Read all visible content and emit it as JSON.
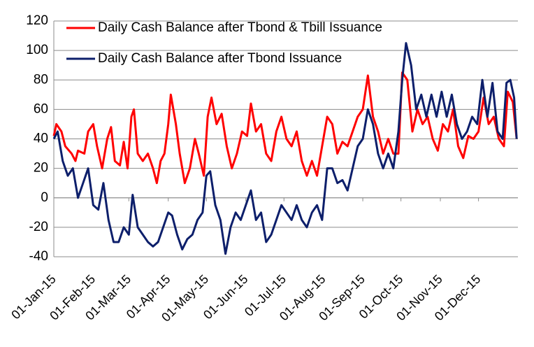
{
  "chart_data": {
    "type": "line",
    "series": [
      {
        "name": "Daily Cash Balance after Tbond & Tbill Issuance",
        "color": "#ff0000",
        "x": [
          "2015-01-01",
          "2015-01-03",
          "2015-01-07",
          "2015-01-10",
          "2015-01-15",
          "2015-01-18",
          "2015-01-20",
          "2015-01-25",
          "2015-01-28",
          "2015-02-01",
          "2015-02-04",
          "2015-02-08",
          "2015-02-12",
          "2015-02-15",
          "2015-02-18",
          "2015-02-22",
          "2015-02-25",
          "2015-02-28",
          "2015-03-03",
          "2015-03-05",
          "2015-03-08",
          "2015-03-12",
          "2015-03-16",
          "2015-03-20",
          "2015-03-23",
          "2015-03-26",
          "2015-03-29",
          "2015-04-01",
          "2015-04-03",
          "2015-04-07",
          "2015-04-10",
          "2015-04-14",
          "2015-04-18",
          "2015-04-22",
          "2015-04-25",
          "2015-04-29",
          "2015-05-02",
          "2015-05-05",
          "2015-05-09",
          "2015-05-13",
          "2015-05-17",
          "2015-05-21",
          "2015-05-25",
          "2015-05-29",
          "2015-06-02",
          "2015-06-05",
          "2015-06-09",
          "2015-06-13",
          "2015-06-17",
          "2015-06-21",
          "2015-06-25",
          "2015-06-29",
          "2015-07-03",
          "2015-07-07",
          "2015-07-11",
          "2015-07-15",
          "2015-07-19",
          "2015-07-23",
          "2015-07-27",
          "2015-07-31",
          "2015-08-04",
          "2015-08-08",
          "2015-08-12",
          "2015-08-16",
          "2015-08-20",
          "2015-08-24",
          "2015-08-28",
          "2015-09-01",
          "2015-09-05",
          "2015-09-09",
          "2015-09-13",
          "2015-09-17",
          "2015-09-21",
          "2015-09-25",
          "2015-09-29",
          "2015-10-02",
          "2015-10-06",
          "2015-10-10",
          "2015-10-14",
          "2015-10-18",
          "2015-10-22",
          "2015-10-26",
          "2015-10-30",
          "2015-11-03",
          "2015-11-07",
          "2015-11-11",
          "2015-11-15",
          "2015-11-19",
          "2015-11-23",
          "2015-11-27",
          "2015-12-01",
          "2015-12-05",
          "2015-12-09",
          "2015-12-13",
          "2015-12-17",
          "2015-12-21",
          "2015-12-24",
          "2015-12-28",
          "2015-12-31"
        ],
        "values": [
          42,
          50,
          45,
          35,
          30,
          25,
          32,
          30,
          45,
          50,
          35,
          20,
          40,
          48,
          25,
          22,
          38,
          20,
          55,
          60,
          30,
          25,
          30,
          20,
          10,
          25,
          30,
          50,
          70,
          50,
          30,
          10,
          20,
          40,
          30,
          15,
          55,
          68,
          50,
          57,
          35,
          20,
          30,
          45,
          42,
          64,
          45,
          50,
          30,
          25,
          45,
          55,
          40,
          35,
          45,
          25,
          15,
          25,
          15,
          35,
          55,
          50,
          30,
          38,
          35,
          45,
          55,
          60,
          83,
          55,
          45,
          30,
          40,
          30,
          30,
          85,
          80,
          45,
          60,
          50,
          55,
          40,
          32,
          50,
          45,
          60,
          35,
          27,
          42,
          40,
          45,
          68,
          50,
          55,
          40,
          35,
          72,
          65,
          40
        ]
      },
      {
        "name": "Daily Cash Balance after Tbond Issuance",
        "color": "#0d1f6b",
        "x": [
          "2015-01-01",
          "2015-01-04",
          "2015-01-08",
          "2015-01-12",
          "2015-01-16",
          "2015-01-20",
          "2015-01-24",
          "2015-01-28",
          "2015-02-01",
          "2015-02-05",
          "2015-02-09",
          "2015-02-13",
          "2015-02-17",
          "2015-02-21",
          "2015-02-25",
          "2015-03-01",
          "2015-03-04",
          "2015-03-08",
          "2015-03-12",
          "2015-03-16",
          "2015-03-20",
          "2015-03-24",
          "2015-03-28",
          "2015-04-01",
          "2015-04-04",
          "2015-04-08",
          "2015-04-12",
          "2015-04-16",
          "2015-04-20",
          "2015-04-24",
          "2015-04-28",
          "2015-05-01",
          "2015-05-04",
          "2015-05-08",
          "2015-05-12",
          "2015-05-16",
          "2015-05-20",
          "2015-05-24",
          "2015-05-28",
          "2015-06-01",
          "2015-06-05",
          "2015-06-09",
          "2015-06-13",
          "2015-06-17",
          "2015-06-21",
          "2015-06-25",
          "2015-06-29",
          "2015-07-03",
          "2015-07-07",
          "2015-07-11",
          "2015-07-15",
          "2015-07-19",
          "2015-07-23",
          "2015-07-27",
          "2015-07-31",
          "2015-08-04",
          "2015-08-08",
          "2015-08-12",
          "2015-08-16",
          "2015-08-20",
          "2015-08-24",
          "2015-08-28",
          "2015-09-01",
          "2015-09-05",
          "2015-09-09",
          "2015-09-13",
          "2015-09-17",
          "2015-09-21",
          "2015-09-25",
          "2015-09-29",
          "2015-10-02",
          "2015-10-05",
          "2015-10-09",
          "2015-10-13",
          "2015-10-17",
          "2015-10-21",
          "2015-10-25",
          "2015-10-29",
          "2015-11-02",
          "2015-11-06",
          "2015-11-10",
          "2015-11-14",
          "2015-11-18",
          "2015-11-22",
          "2015-11-26",
          "2015-11-30",
          "2015-12-04",
          "2015-12-08",
          "2015-12-12",
          "2015-12-16",
          "2015-12-20",
          "2015-12-23",
          "2015-12-26",
          "2015-12-29",
          "2015-12-31"
        ],
        "values": [
          40,
          45,
          25,
          15,
          20,
          0,
          10,
          20,
          -5,
          -8,
          10,
          -15,
          -30,
          -30,
          -20,
          -25,
          2,
          -20,
          -25,
          -30,
          -33,
          -30,
          -20,
          -10,
          -12,
          -25,
          -35,
          -28,
          -25,
          -15,
          -10,
          15,
          18,
          -5,
          -15,
          -38,
          -20,
          -10,
          -15,
          -5,
          5,
          -15,
          -10,
          -30,
          -25,
          -15,
          -5,
          -10,
          -15,
          -5,
          -15,
          -20,
          -10,
          -5,
          -15,
          20,
          20,
          10,
          12,
          5,
          20,
          35,
          40,
          60,
          50,
          30,
          20,
          30,
          20,
          45,
          80,
          105,
          90,
          60,
          70,
          55,
          70,
          55,
          72,
          55,
          70,
          50,
          40,
          45,
          55,
          50,
          80,
          55,
          78,
          45,
          40,
          78,
          80,
          68,
          40
        ]
      }
    ],
    "xlim": [
      "2015-01-01",
      "2016-01-01"
    ],
    "xticks": [
      {
        "value": "2015-01-01",
        "label": "01-Jan-15"
      },
      {
        "value": "2015-02-01",
        "label": "01-Feb-15"
      },
      {
        "value": "2015-03-01",
        "label": "01-Mar-15"
      },
      {
        "value": "2015-04-01",
        "label": "01-Apr-15"
      },
      {
        "value": "2015-05-01",
        "label": "01-May-15"
      },
      {
        "value": "2015-06-01",
        "label": "01-Jun-15"
      },
      {
        "value": "2015-07-01",
        "label": "01-Jul-15"
      },
      {
        "value": "2015-08-01",
        "label": "01-Aug-15"
      },
      {
        "value": "2015-09-01",
        "label": "01-Sep-15"
      },
      {
        "value": "2015-10-01",
        "label": "01-Oct-15"
      },
      {
        "value": "2015-11-01",
        "label": "01-Nov-15"
      },
      {
        "value": "2015-12-01",
        "label": "01-Dec-15"
      }
    ],
    "ylim": [
      -40,
      120
    ],
    "yticks": [
      -40,
      -20,
      0,
      20,
      40,
      60,
      80,
      100,
      120
    ],
    "grid": true
  }
}
